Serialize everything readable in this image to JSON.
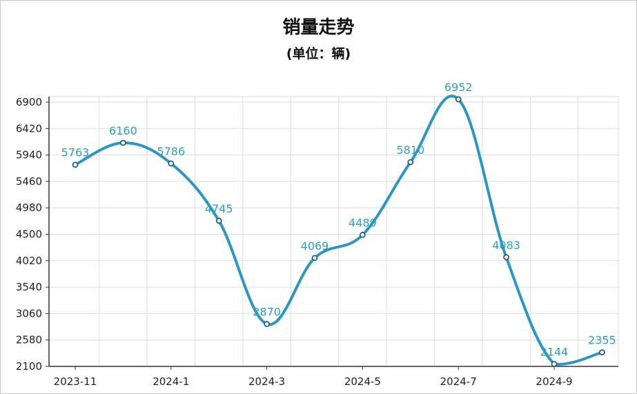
{
  "chart_data": {
    "type": "line",
    "title": "销量走势",
    "subtitle": "(单位：辆)",
    "x_tick_labels": [
      "2023-11",
      "2024-1",
      "2024-3",
      "2024-5",
      "2024-7",
      "2024-9"
    ],
    "y_tick_labels": [
      "2100",
      "2580",
      "3060",
      "3540",
      "4020",
      "4500",
      "4980",
      "5460",
      "5940",
      "6420",
      "6900"
    ],
    "ylim": [
      2100,
      6900
    ],
    "grid": true,
    "smooth": true,
    "line_color": "#2a96c8",
    "label_color": "#2aa0c8",
    "series": [
      {
        "x": [
          0,
          1,
          2,
          3,
          4,
          5,
          6,
          7,
          8,
          9,
          10,
          11
        ],
        "values": [
          5763,
          6160,
          5786,
          4745,
          2870,
          4069,
          4489,
          5810,
          6952,
          4083,
          2144,
          2355
        ],
        "labels": [
          "5763",
          "6160",
          "5786",
          "4745",
          "2870",
          "4069",
          "4489",
          "5810",
          "6952",
          "4083",
          "2144",
          "2355"
        ]
      }
    ]
  }
}
